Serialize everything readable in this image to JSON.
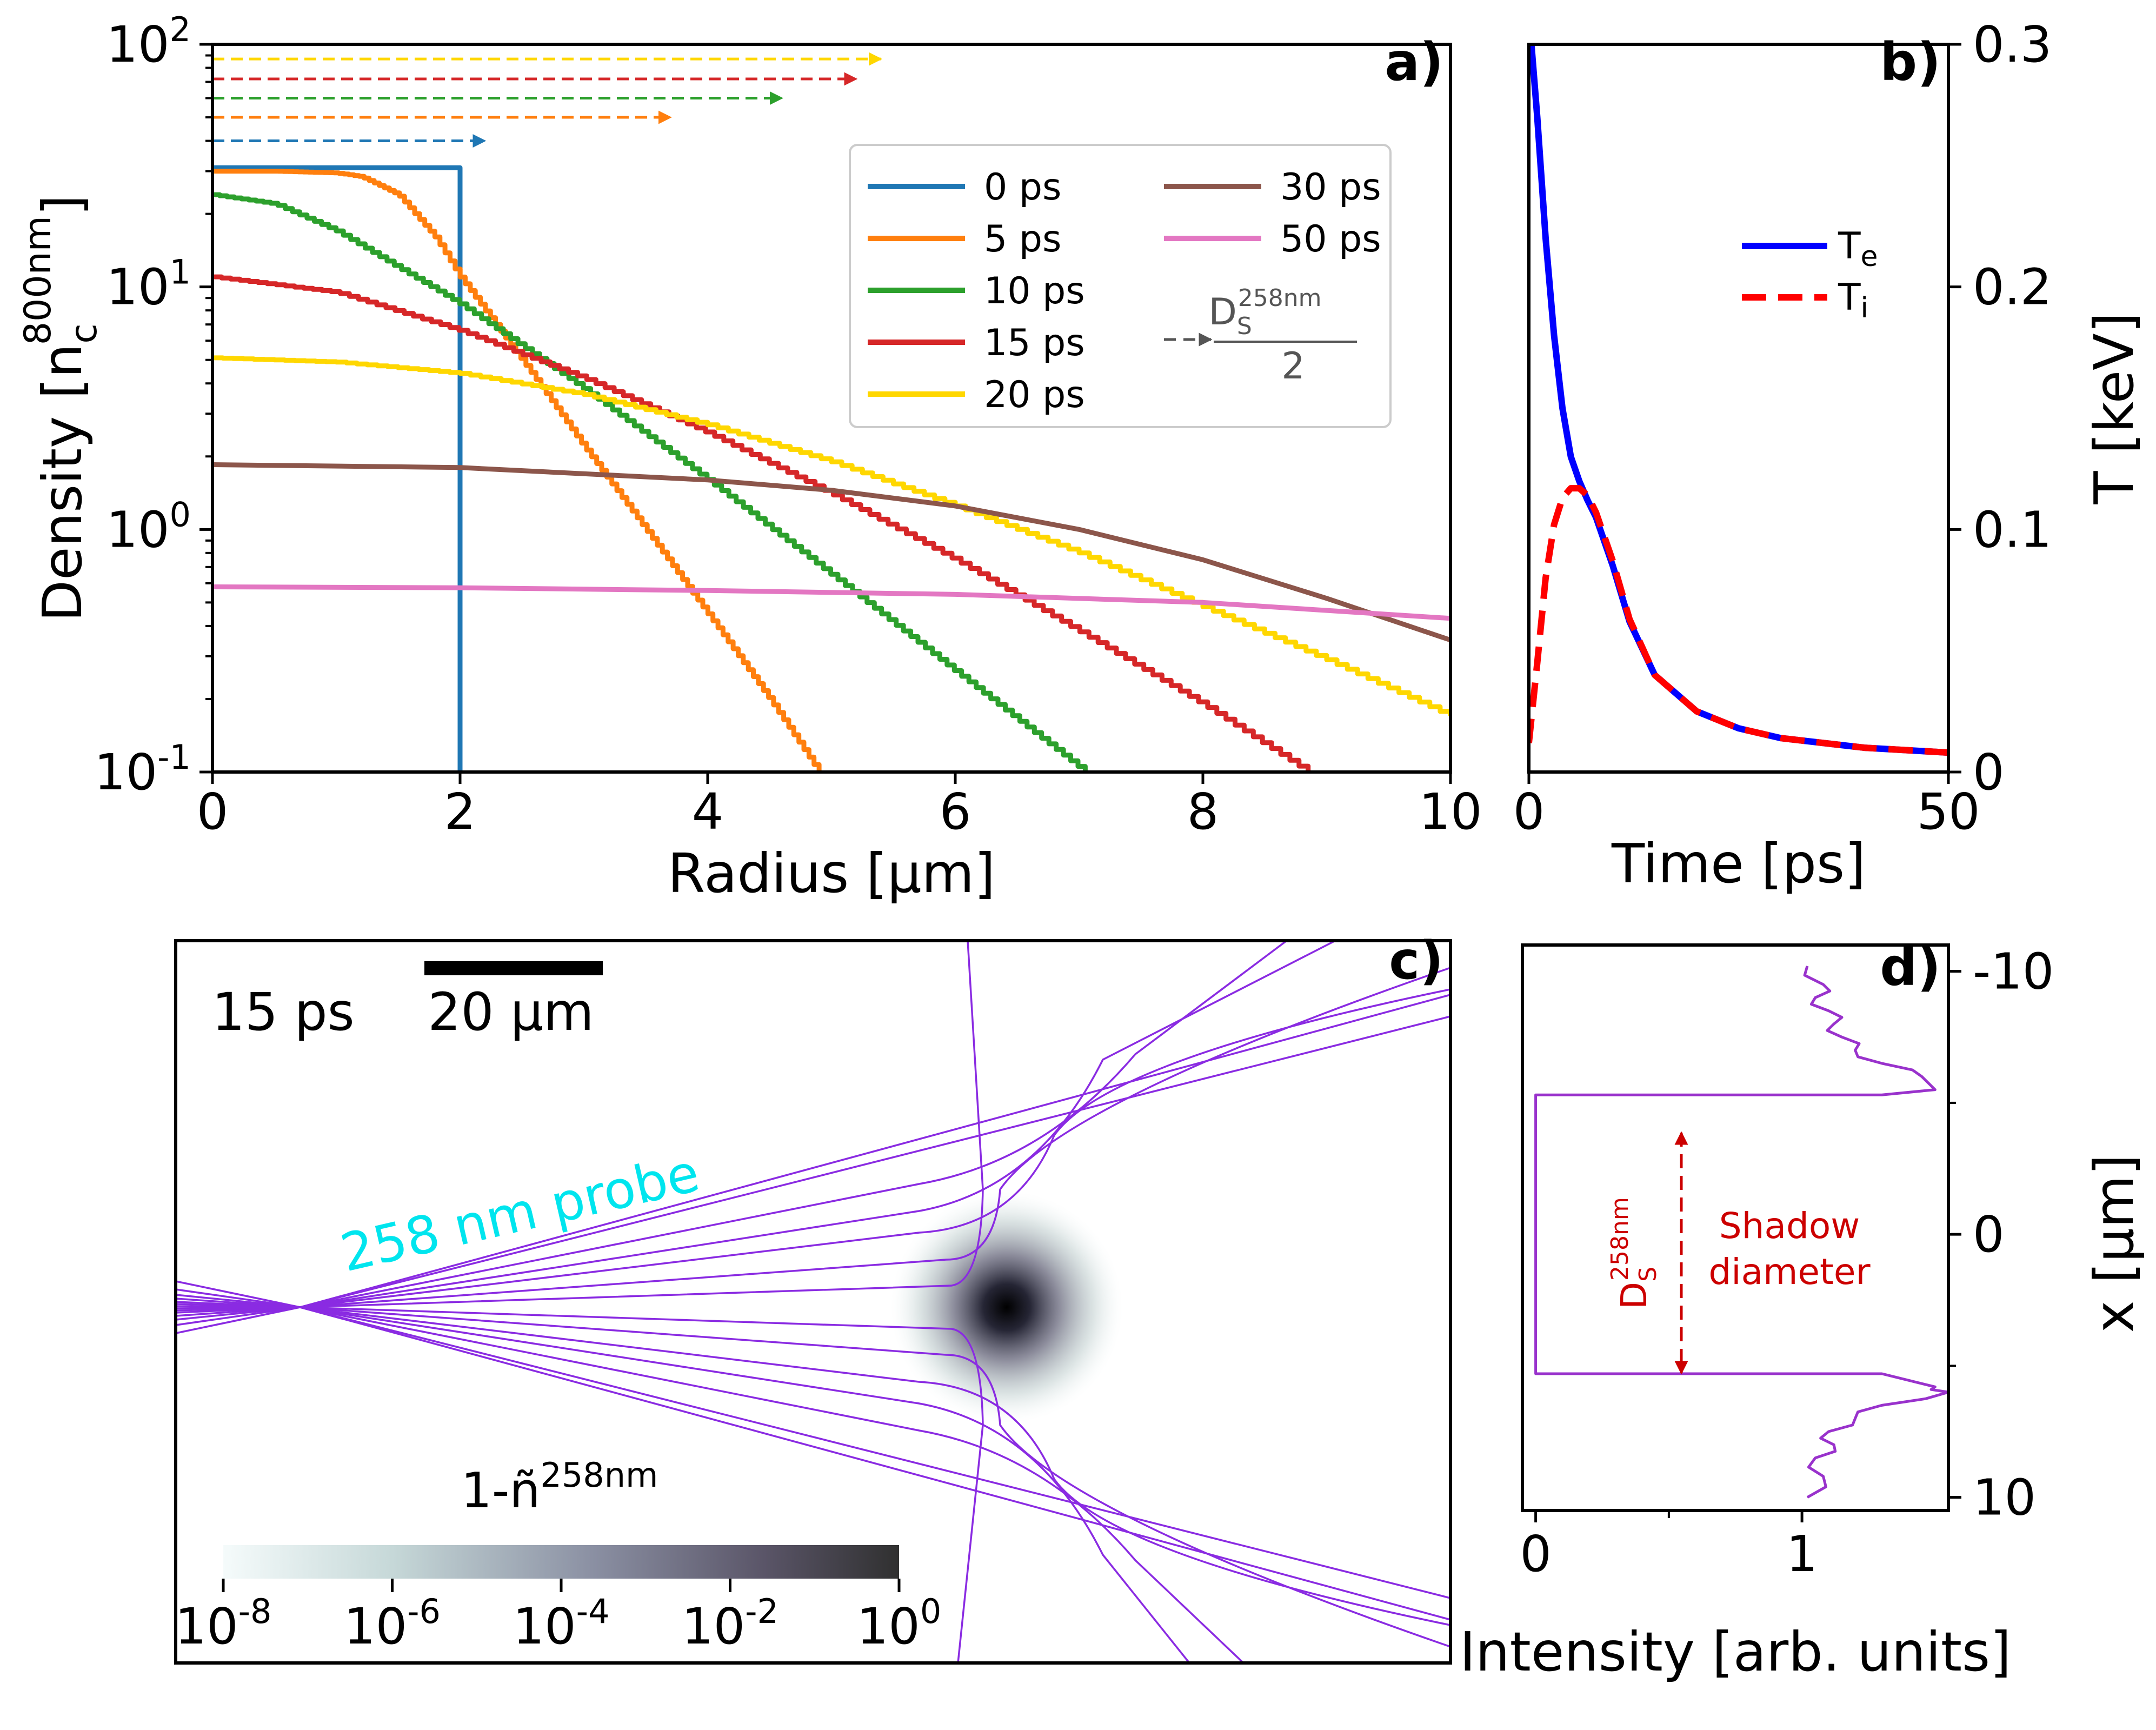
{
  "chart_data": [
    {
      "id": "a",
      "type": "line",
      "panel_label": "a)",
      "xlabel": "Radius [μm]",
      "ylabel": {
        "base": "Density [n",
        "sub": "c",
        "sup": "800nm",
        "end": "]"
      },
      "yscale": "log",
      "xlim": [
        0,
        10
      ],
      "ylim": [
        0.1,
        100
      ],
      "xticks": [
        0,
        2,
        4,
        6,
        8,
        10
      ],
      "yticks": [
        {
          "base": "10",
          "exp": "-1",
          "value": 0.1
        },
        {
          "base": "10",
          "exp": "0",
          "value": 1
        },
        {
          "base": "10",
          "exp": "1",
          "value": 10
        },
        {
          "base": "10",
          "exp": "2",
          "value": 100
        }
      ],
      "series": [
        {
          "name": "0 ps",
          "color": "#1f77b4",
          "step": true,
          "x": [
            0,
            2,
            2
          ],
          "y": [
            31,
            31,
            0.1
          ]
        },
        {
          "name": "5 ps",
          "color": "#ff7f0e",
          "step": true,
          "x": [
            0,
            0.5,
            1.0,
            1.2,
            1.5,
            1.8,
            2.0,
            2.5,
            3.0,
            3.5,
            4.0,
            4.5,
            4.9
          ],
          "y": [
            30,
            30,
            29.5,
            28.5,
            24,
            16,
            11,
            5,
            2.2,
            1.0,
            0.45,
            0.2,
            0.1
          ]
        },
        {
          "name": "10 ps",
          "color": "#2ca02c",
          "step": true,
          "x": [
            0,
            0.5,
            1.0,
            1.5,
            2.0,
            3.0,
            4.0,
            5.0,
            6.0,
            7.05
          ],
          "y": [
            24,
            22,
            17,
            12,
            8.5,
            3.8,
            1.6,
            0.65,
            0.26,
            0.1
          ]
        },
        {
          "name": "15 ps",
          "color": "#d62728",
          "step": true,
          "x": [
            0,
            1.0,
            2.0,
            3.0,
            4.0,
            5.0,
            6.0,
            7.0,
            8.0,
            8.85
          ],
          "y": [
            11,
            9.5,
            6.6,
            4.2,
            2.5,
            1.4,
            0.75,
            0.38,
            0.19,
            0.1
          ]
        },
        {
          "name": "20 ps",
          "color": "#ffd700",
          "step": true,
          "x": [
            0,
            1.0,
            2.0,
            3.0,
            4.0,
            5.0,
            6.0,
            7.0,
            8.0,
            9.0,
            10.0
          ],
          "y": [
            5.1,
            4.9,
            4.4,
            3.6,
            2.7,
            1.9,
            1.25,
            0.8,
            0.48,
            0.29,
            0.17
          ]
        },
        {
          "name": "30 ps",
          "color": "#8c564b",
          "step": false,
          "x": [
            0,
            2.0,
            4.0,
            5.0,
            6.0,
            7.0,
            8.0,
            9.0,
            10.0
          ],
          "y": [
            1.85,
            1.8,
            1.6,
            1.45,
            1.25,
            1.0,
            0.75,
            0.52,
            0.35
          ]
        },
        {
          "name": "50 ps",
          "color": "#e377c2",
          "step": false,
          "x": [
            0,
            2.0,
            4.0,
            6.0,
            8.0,
            10.0
          ],
          "y": [
            0.58,
            0.575,
            0.56,
            0.54,
            0.5,
            0.43
          ]
        }
      ],
      "arrows": [
        {
          "color": "#1f77b4",
          "y": 40,
          "x_end": 2.2
        },
        {
          "color": "#ff7f0e",
          "y": 50,
          "x_end": 3.7
        },
        {
          "color": "#2ca02c",
          "y": 60,
          "x_end": 4.6
        },
        {
          "color": "#d62728",
          "y": 72,
          "x_end": 5.2
        },
        {
          "color": "#ffd700",
          "y": 87,
          "x_end": 5.4
        }
      ],
      "legend": {
        "placement": "upper-right",
        "extra_entry": {
          "label_base": "D",
          "label_sub": "S",
          "label_sup": "258nm",
          "denominator": "2",
          "color": "#555555"
        }
      }
    },
    {
      "id": "b",
      "type": "line",
      "panel_label": "b)",
      "xlabel": "Time [ps]",
      "ylabel": "T [keV]",
      "yaxis_side": "right",
      "xlim": [
        0,
        50
      ],
      "ylim": [
        0,
        0.3
      ],
      "xticks": [
        0,
        50
      ],
      "yticks": [
        0,
        0.1,
        0.2,
        0.3
      ],
      "series": [
        {
          "name": "Te",
          "label_base": "T",
          "label_sub": "e",
          "color": "#0000ff",
          "dash": false,
          "x": [
            0.3,
            1,
            2,
            3,
            4,
            5,
            6,
            7,
            8,
            10,
            12,
            15,
            20,
            25,
            30,
            40,
            50
          ],
          "y": [
            0.3,
            0.27,
            0.22,
            0.18,
            0.15,
            0.13,
            0.12,
            0.112,
            0.105,
            0.085,
            0.062,
            0.04,
            0.025,
            0.018,
            0.014,
            0.01,
            0.008
          ]
        },
        {
          "name": "Ti",
          "label_base": "T",
          "label_sub": "i",
          "color": "#ff0000",
          "dash": true,
          "x": [
            0,
            1,
            2,
            3,
            4,
            5,
            6,
            7,
            8,
            10,
            12,
            15,
            20,
            25,
            30,
            40,
            50
          ],
          "y": [
            0.012,
            0.045,
            0.08,
            0.102,
            0.113,
            0.117,
            0.117,
            0.114,
            0.107,
            0.087,
            0.063,
            0.04,
            0.025,
            0.018,
            0.014,
            0.01,
            0.008
          ]
        }
      ],
      "legend": {
        "placement": "center-right"
      }
    },
    {
      "id": "c",
      "type": "heatmap",
      "panel_label": "c)",
      "time_label": "15 ps",
      "scale_bar_label": "20 μm",
      "probe_label": "258 nm probe",
      "probe_label_color": "#00e5ee",
      "ray_color": "#8a2be2",
      "colorbar": {
        "title_base": "1-ñ",
        "title_sup": "258nm",
        "scale": "log",
        "ticks": [
          {
            "base": "10",
            "exp": "-8"
          },
          {
            "base": "10",
            "exp": "-6"
          },
          {
            "base": "10",
            "exp": "-4"
          },
          {
            "base": "10",
            "exp": "-2"
          },
          {
            "base": "10",
            "exp": "0"
          }
        ]
      }
    },
    {
      "id": "d",
      "type": "line",
      "panel_label": "d)",
      "xlabel": "Intensity [arb. units]",
      "ylabel": "x [μm]",
      "yaxis_side": "right",
      "xlim": [
        -0.05,
        1.55
      ],
      "ylim": [
        10.5,
        -11.0
      ],
      "xticks": [
        0,
        1
      ],
      "yticks": [
        {
          "label": "-10",
          "value": -10
        },
        {
          "label": "0",
          "value": 0
        },
        {
          "label": "10",
          "value": 10
        }
      ],
      "series": [
        {
          "name": "intensity",
          "color": "#9932cc",
          "x": [
            1.02,
            1.08,
            1.05,
            1.1,
            1.12,
            1.15,
            1.2,
            1.3,
            1.45,
            1.5,
            1.3,
            0.0,
            0.0,
            1.3,
            1.5,
            1.55,
            1.3,
            1.2,
            1.1,
            1.12,
            1.05,
            1.08,
            1.02
          ],
          "y": [
            -10.2,
            -9.5,
            -9.0,
            -8.5,
            -8.0,
            -7.5,
            -7.0,
            -6.5,
            -6.0,
            -5.5,
            -5.3,
            -5.3,
            5.3,
            5.3,
            5.8,
            6.0,
            6.5,
            7.0,
            7.5,
            8.0,
            8.5,
            9.2,
            10.0
          ]
        }
      ],
      "annotation": {
        "symbol_base": "D",
        "symbol_sub": "S",
        "symbol_sup": "258nm",
        "line1": "Shadow",
        "line2": "diameter",
        "color": "#cc0000"
      }
    }
  ]
}
